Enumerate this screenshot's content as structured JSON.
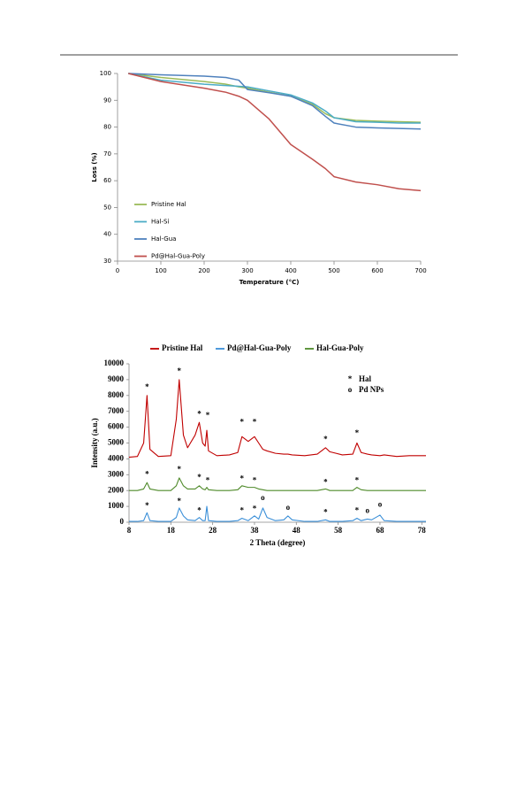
{
  "chart_data": [
    {
      "type": "line",
      "xlabel": "Temperature (°C)",
      "ylabel": "Loss (%)",
      "x": [
        25,
        100,
        200,
        250,
        280,
        300,
        350,
        400,
        450,
        480,
        500,
        550,
        600,
        650,
        700
      ],
      "series": [
        {
          "name": "Pristine Hal",
          "color": "#9bbb59",
          "values": [
            100,
            98.5,
            97,
            96,
            95,
            94.5,
            93,
            91.5,
            88.5,
            85,
            83.5,
            82.5,
            82.2,
            82,
            81.8
          ]
        },
        {
          "name": "Hal-Si",
          "color": "#4bacc6",
          "values": [
            100,
            97.5,
            96,
            95.5,
            95.2,
            95,
            93.5,
            92,
            89,
            86,
            83.5,
            82,
            81.8,
            81.5,
            81.5
          ]
        },
        {
          "name": "Hal-Gua",
          "color": "#4f81bd",
          "values": [
            100,
            99.5,
            99,
            98.5,
            97.5,
            94,
            92.8,
            91.5,
            88,
            84,
            81.5,
            80,
            79.7,
            79.5,
            79.3
          ]
        },
        {
          "name": "Pd@Hal-Gua-Poly",
          "color": "#c0504d",
          "values": [
            100,
            97,
            94.5,
            93,
            91.5,
            90,
            83,
            73.5,
            68,
            64.5,
            61.5,
            59.5,
            58.5,
            57,
            56.3
          ]
        }
      ],
      "xlim": [
        0,
        700
      ],
      "xticks": [
        0,
        100,
        200,
        300,
        400,
        500,
        600,
        700
      ],
      "ylim": [
        30,
        100
      ],
      "yticks": [
        30,
        40,
        50,
        60,
        70,
        80,
        90,
        100
      ],
      "legend": "lower left"
    },
    {
      "type": "line",
      "xlabel": "2 Theta (degree)",
      "ylabel": "Intensity (a.u.)",
      "x": [
        8,
        10,
        11.5,
        12.3,
        13,
        15,
        18,
        19.3,
        20,
        21,
        22,
        23.8,
        24.8,
        25.6,
        26.2,
        26.6,
        27,
        29,
        32,
        34,
        35,
        36.5,
        38,
        39,
        40,
        41,
        43,
        45,
        46,
        47,
        50,
        53,
        55,
        56,
        59,
        61.5,
        62.5,
        63.5,
        65,
        66,
        68,
        69,
        72,
        75,
        79
      ],
      "series": [
        {
          "name": "Pristine Hal",
          "color": "#c00000",
          "values": [
            4100,
            4150,
            5000,
            8000,
            4600,
            4150,
            4200,
            6500,
            9000,
            5500,
            4700,
            5500,
            6300,
            5000,
            4800,
            5800,
            4500,
            4200,
            4250,
            4400,
            5400,
            5100,
            5400,
            5000,
            4600,
            4500,
            4350,
            4300,
            4300,
            4250,
            4200,
            4300,
            4700,
            4450,
            4250,
            4300,
            5000,
            4400,
            4300,
            4250,
            4200,
            4250,
            4150,
            4200,
            4200
          ]
        },
        {
          "name": "Pd@Hal-Gua-Poly",
          "color": "#3a8fd8",
          "values": [
            50,
            50,
            100,
            600,
            100,
            50,
            50,
            300,
            900,
            400,
            150,
            100,
            300,
            100,
            100,
            1000,
            100,
            50,
            50,
            100,
            250,
            100,
            400,
            200,
            900,
            300,
            100,
            150,
            400,
            150,
            50,
            50,
            150,
            50,
            50,
            100,
            250,
            100,
            200,
            150,
            450,
            100,
            50,
            50,
            50
          ]
        },
        {
          "name": "Hal-Gua-Poly",
          "color": "#4f8a2a",
          "values": [
            2000,
            2000,
            2100,
            2500,
            2100,
            2000,
            2000,
            2300,
            2800,
            2300,
            2100,
            2100,
            2300,
            2100,
            2050,
            2200,
            2050,
            2000,
            2000,
            2050,
            2300,
            2200,
            2200,
            2100,
            2050,
            2000,
            2000,
            2000,
            2000,
            2000,
            2000,
            2000,
            2100,
            2000,
            2000,
            2000,
            2200,
            2050,
            2000,
            2000,
            2000,
            2000,
            2000,
            2000,
            2000
          ]
        }
      ],
      "xlim": [
        8,
        79
      ],
      "xticks": [
        8,
        18,
        28,
        38,
        48,
        58,
        68,
        78
      ],
      "ylim": [
        0,
        10000
      ],
      "yticks": [
        0,
        1000,
        2000,
        3000,
        4000,
        5000,
        6000,
        7000,
        8000,
        9000,
        10000
      ],
      "legend": "top",
      "annotations": [
        {
          "text": "*",
          "x": 12.3,
          "y": 8500
        },
        {
          "text": "*",
          "x": 20,
          "y": 9500
        },
        {
          "text": "*",
          "x": 24.8,
          "y": 6800
        },
        {
          "text": "*",
          "x": 26.8,
          "y": 6700
        },
        {
          "text": "*",
          "x": 35,
          "y": 6300
        },
        {
          "text": "*",
          "x": 38,
          "y": 6300
        },
        {
          "text": "*",
          "x": 55,
          "y": 5200
        },
        {
          "text": "*",
          "x": 62.5,
          "y": 5600
        },
        {
          "text": "*",
          "x": 12.3,
          "y": 3000
        },
        {
          "text": "*",
          "x": 20,
          "y": 3300
        },
        {
          "text": "*",
          "x": 24.8,
          "y": 2800
        },
        {
          "text": "*",
          "x": 26.8,
          "y": 2600
        },
        {
          "text": "*",
          "x": 35,
          "y": 2700
        },
        {
          "text": "*",
          "x": 38,
          "y": 2600
        },
        {
          "text": "*",
          "x": 55,
          "y": 2500
        },
        {
          "text": "*",
          "x": 62.5,
          "y": 2600
        },
        {
          "text": "*",
          "x": 12.3,
          "y": 1000
        },
        {
          "text": "*",
          "x": 20,
          "y": 1300
        },
        {
          "text": "*",
          "x": 24.8,
          "y": 700
        },
        {
          "text": "*",
          "x": 35,
          "y": 700
        },
        {
          "text": "*",
          "x": 38,
          "y": 800
        },
        {
          "text": "*",
          "x": 55,
          "y": 600
        },
        {
          "text": "*",
          "x": 62.5,
          "y": 700
        },
        {
          "text": "o",
          "x": 40,
          "y": 1500
        },
        {
          "text": "o",
          "x": 46,
          "y": 900
        },
        {
          "text": "o",
          "x": 65,
          "y": 700
        },
        {
          "text": "o",
          "x": 68,
          "y": 1100
        }
      ],
      "marker_legend": [
        {
          "symbol": "*",
          "label": "Hal"
        },
        {
          "symbol": "o",
          "label": "Pd NPs"
        }
      ]
    }
  ]
}
